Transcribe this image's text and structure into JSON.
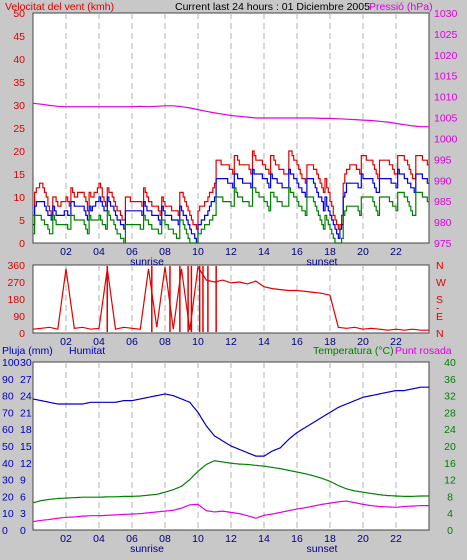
{
  "header": {
    "wind_label": "Velocitat del vent (kmh)",
    "title": "Current last 24 hours : 01 Diciembre 2005",
    "pressure_label": "Pressió (hPa)"
  },
  "panel3_labels": {
    "rain": "Pluja (mm)",
    "humidity": "Humitat",
    "temperature": "Temperatura (°C)",
    "dewpoint": "Punt rosada"
  },
  "colors": {
    "background": "#c8c8c8",
    "plot": "#ffffff",
    "wind_max": "#e00000",
    "wind_avg": "#0000e0",
    "wind_min": "#008000",
    "pressure": "#e000e0",
    "direction": "#e00000",
    "humidity": "#0000c0",
    "temperature": "#008000",
    "dewpoint": "#e000e0"
  },
  "chart_data": [
    {
      "type": "line",
      "name": "wind",
      "x_ticks": [
        "02",
        "04",
        "06",
        "08",
        "10",
        "12",
        "14",
        "16",
        "18",
        "20",
        "22"
      ],
      "markers": [
        "sunrise",
        "sunset"
      ],
      "left_axis": {
        "ticks": [
          "0",
          "5",
          "10",
          "15",
          "20",
          "25",
          "30",
          "35",
          "40",
          "45",
          "50"
        ],
        "ylim": [
          0,
          50
        ]
      },
      "right_axis": {
        "ticks": [
          "975",
          "980",
          "985",
          "990",
          "995",
          "1000",
          "1005",
          "1010",
          "1015",
          "1020",
          "1025",
          "1030"
        ],
        "ylim": [
          975,
          1030
        ]
      },
      "hours": [
        0,
        0.5,
        1,
        1.5,
        2,
        2.5,
        3,
        3.5,
        4,
        4.5,
        5,
        5.5,
        6,
        6.5,
        7,
        7.5,
        8,
        8.5,
        9,
        9.5,
        10,
        10.5,
        11,
        11.5,
        12,
        12.5,
        13,
        13.5,
        14,
        14.5,
        15,
        15.5,
        16,
        16.5,
        17,
        17.5,
        18,
        18.5,
        19,
        19.5,
        20,
        20.5,
        21,
        21.5,
        22,
        22.5,
        23,
        23.5
      ],
      "wind_max": [
        8,
        13,
        9,
        7,
        11,
        9,
        12,
        8,
        13,
        10,
        8,
        7,
        9,
        11,
        8,
        9,
        7,
        8,
        9,
        6,
        5,
        9,
        15,
        17,
        18,
        16,
        18,
        17,
        18,
        17,
        16,
        18,
        17,
        15,
        16,
        14,
        8,
        4,
        15,
        18,
        17,
        18,
        16,
        18,
        17,
        18,
        16,
        18
      ],
      "wind_avg": [
        6,
        9,
        7,
        5,
        8,
        7,
        9,
        6,
        10,
        8,
        6,
        5,
        7,
        8,
        6,
        7,
        5,
        6,
        6,
        3,
        2,
        6,
        12,
        14,
        14,
        13,
        14,
        14,
        15,
        13,
        13,
        14,
        13,
        12,
        13,
        10,
        5,
        2,
        12,
        14,
        13,
        14,
        12,
        14,
        14,
        14,
        13,
        14
      ],
      "wind_min": [
        4,
        5,
        4,
        3,
        5,
        4,
        6,
        3,
        6,
        5,
        3,
        2,
        4,
        5,
        3,
        4,
        3,
        3,
        3,
        0,
        0,
        4,
        8,
        9,
        10,
        9,
        10,
        10,
        10,
        9,
        9,
        10,
        9,
        8,
        9,
        6,
        2,
        0,
        7,
        9,
        8,
        10,
        8,
        10,
        9,
        10,
        8,
        10
      ],
      "pressure": [
        1008.4,
        1008.2,
        1007.9,
        1007.7,
        1007.6,
        1007.6,
        1007.6,
        1007.6,
        1007.6,
        1007.6,
        1007.6,
        1007.6,
        1007.6,
        1007.7,
        1007.6,
        1007.7,
        1007.8,
        1007.8,
        1007.6,
        1007.3,
        1006.9,
        1006.5,
        1006.1,
        1005.8,
        1005.5,
        1005.3,
        1005.1,
        1004.9,
        1004.9,
        1004.9,
        1004.9,
        1004.9,
        1004.9,
        1004.9,
        1004.9,
        1004.8,
        1004.8,
        1004.7,
        1004.6,
        1004.5,
        1004.4,
        1004.3,
        1004.1,
        1003.9,
        1003.6,
        1003.3,
        1003.0,
        1002.8
      ]
    },
    {
      "type": "line",
      "name": "wind direction",
      "x_ticks": [
        "02",
        "04",
        "06",
        "08",
        "10",
        "12",
        "14",
        "16",
        "18",
        "20",
        "22"
      ],
      "left_axis": {
        "ticks": [
          "0",
          "90",
          "180",
          "270",
          "360"
        ],
        "ylim": [
          0,
          360
        ]
      },
      "right_axis": {
        "ticks": [
          "N",
          "E",
          "S",
          "W",
          "N"
        ]
      },
      "hours": [
        0,
        0.5,
        1,
        1.5,
        2,
        2.5,
        3,
        3.5,
        4,
        4.5,
        5,
        5.5,
        6,
        6.5,
        7,
        7.5,
        8,
        8.5,
        9,
        9.5,
        10,
        10.5,
        11,
        11.5,
        12,
        12.5,
        13,
        13.5,
        14,
        14.5,
        15,
        15.5,
        16,
        16.5,
        17,
        17.5,
        18,
        18.5,
        19,
        19.5,
        20,
        20.5,
        21,
        21.5,
        22,
        22.5,
        23,
        23.5
      ],
      "direction": [
        20,
        25,
        30,
        20,
        340,
        25,
        30,
        20,
        25,
        340,
        20,
        30,
        25,
        20,
        340,
        30,
        350,
        20,
        340,
        15,
        350,
        280,
        270,
        280,
        265,
        270,
        260,
        275,
        245,
        235,
        230,
        225,
        225,
        220,
        215,
        210,
        200,
        30,
        25,
        30,
        20,
        25,
        20,
        15,
        20,
        15,
        20,
        15
      ],
      "spikes": [
        4.5,
        7.2,
        8.3,
        8.9,
        9.4,
        9.6,
        10.1,
        10.3,
        10.6,
        11.1
      ]
    },
    {
      "type": "line",
      "name": "rain humidity temperature",
      "x_ticks": [
        "02",
        "04",
        "06",
        "08",
        "10",
        "12",
        "14",
        "16",
        "18",
        "20",
        "22"
      ],
      "markers": [
        "sunrise",
        "sunset"
      ],
      "left_axis": {
        "ticks": [
          "0",
          "10",
          "20",
          "30",
          "40",
          "50",
          "60",
          "70",
          "80",
          "90",
          "100"
        ],
        "ylim": [
          0,
          100
        ]
      },
      "left_axis_2": {
        "ticks": [
          "0",
          "3",
          "6",
          "9",
          "12",
          "15",
          "18",
          "21",
          "24",
          "27",
          "30"
        ],
        "ylim": [
          0,
          30
        ]
      },
      "right_axis": {
        "ticks": [
          "0",
          "4",
          "8",
          "12",
          "16",
          "20",
          "24",
          "28",
          "32",
          "36",
          "40"
        ],
        "ylim": [
          0,
          40
        ]
      },
      "hours": [
        0,
        0.5,
        1,
        1.5,
        2,
        2.5,
        3,
        3.5,
        4,
        4.5,
        5,
        5.5,
        6,
        6.5,
        7,
        7.5,
        8,
        8.5,
        9,
        9.5,
        10,
        10.5,
        11,
        11.5,
        12,
        12.5,
        13,
        13.5,
        14,
        14.5,
        15,
        15.5,
        16,
        16.5,
        17,
        17.5,
        18,
        18.5,
        19,
        19.5,
        20,
        20.5,
        21,
        21.5,
        22,
        22.5,
        23,
        23.5
      ],
      "humidity": [
        78,
        77,
        76,
        75,
        75,
        75,
        75,
        76,
        76,
        76,
        76,
        77,
        77,
        78,
        79,
        80,
        81,
        80,
        78,
        76,
        70,
        62,
        56,
        53,
        50,
        48,
        46,
        44,
        44,
        47,
        49,
        54,
        58,
        61,
        64,
        67,
        70,
        73,
        75,
        77,
        79,
        80,
        81,
        82,
        83,
        83,
        84,
        85
      ],
      "temperature": [
        6.5,
        7.0,
        7.3,
        7.5,
        7.6,
        7.7,
        7.8,
        7.8,
        7.8,
        7.9,
        7.9,
        8.0,
        8.0,
        8.1,
        8.3,
        8.5,
        9.0,
        9.6,
        10.4,
        12.0,
        14.0,
        15.6,
        16.5,
        16.2,
        15.9,
        15.7,
        15.6,
        15.4,
        15.2,
        14.9,
        14.6,
        14.2,
        13.8,
        13.4,
        12.9,
        12.3,
        11.6,
        10.6,
        9.8,
        9.3,
        9.0,
        8.7,
        8.4,
        8.2,
        8.1,
        8.0,
        8.0,
        8.1
      ],
      "dewpoint": [
        2.0,
        2.3,
        2.5,
        2.8,
        3.0,
        3.1,
        3.3,
        3.4,
        3.4,
        3.5,
        3.6,
        3.7,
        3.8,
        3.9,
        4.1,
        4.3,
        4.5,
        4.7,
        5.2,
        6.0,
        6.1,
        4.6,
        4.3,
        4.5,
        4.2,
        3.9,
        3.4,
        2.8,
        3.5,
        3.8,
        4.2,
        4.6,
        5.0,
        5.3,
        5.7,
        6.1,
        6.4,
        6.7,
        6.9,
        6.5,
        6.1,
        5.8,
        5.6,
        5.5,
        5.4,
        5.6,
        5.7,
        5.8
      ]
    }
  ]
}
